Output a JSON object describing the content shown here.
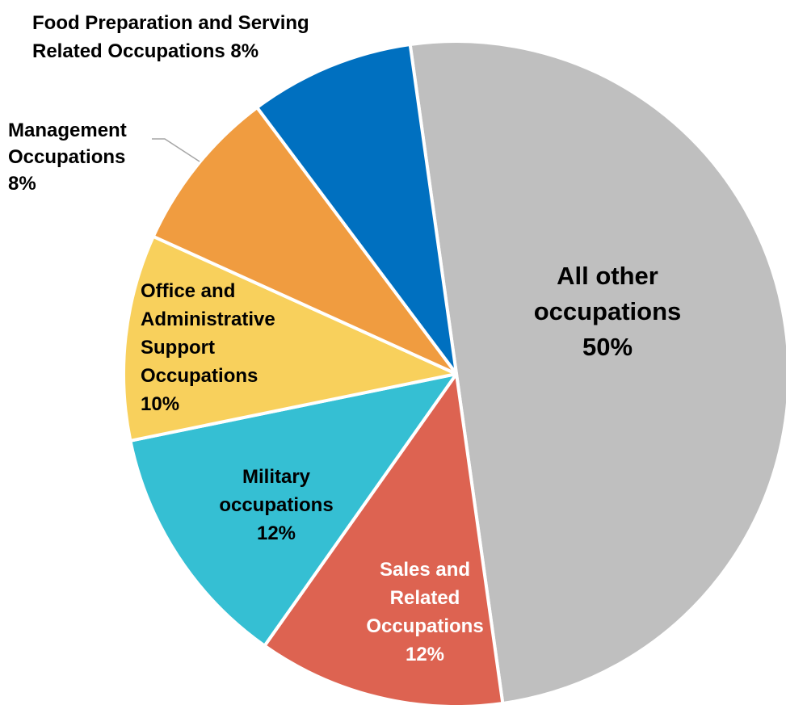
{
  "chart_data": {
    "type": "pie",
    "title": "",
    "slices": [
      {
        "label_lines": [
          "All other",
          "occupations",
          "50%"
        ],
        "value": 50,
        "color": "#bfbfbf",
        "text_color": "#000000"
      },
      {
        "label_lines": [
          "Sales and",
          "Related",
          "Occupations",
          "12%"
        ],
        "value": 12,
        "color": "#dd6351",
        "text_color": "#ffffff"
      },
      {
        "label_lines": [
          "Military",
          "occupations",
          "12%"
        ],
        "value": 12,
        "color": "#35bfd3",
        "text_color": "#000000"
      },
      {
        "label_lines": [
          "Office and",
          "Administrative",
          "Support",
          "Occupations",
          "10%"
        ],
        "value": 10,
        "color": "#f8d05c",
        "text_color": "#000000"
      },
      {
        "label_lines": [
          "Management",
          "Occupations",
          "8%"
        ],
        "value": 8,
        "color": "#f09c40",
        "text_color": "#000000"
      },
      {
        "label_lines": [
          "Food Preparation and Serving",
          "Related Occupations 8%"
        ],
        "value": 8,
        "color": "#0070c0",
        "text_color": "#000000"
      }
    ],
    "legend": "none"
  }
}
